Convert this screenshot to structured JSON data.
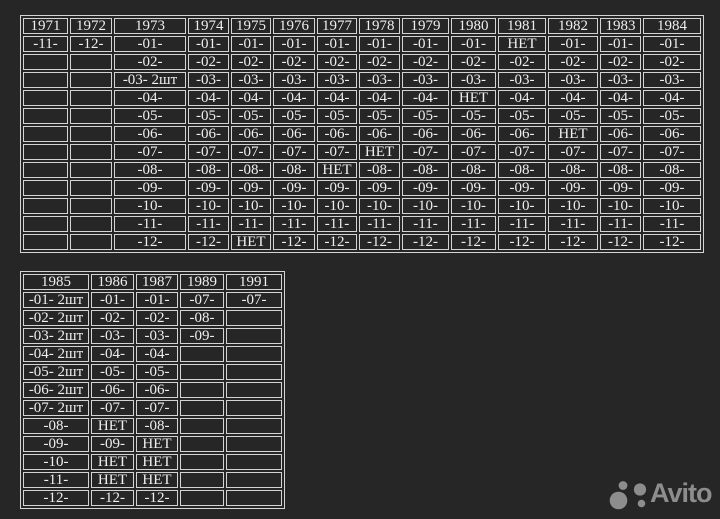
{
  "page": {
    "background_color": "#262626",
    "table_border_color": "#d4d4d4",
    "table_text_color": "#efefef"
  },
  "tables": {
    "table1": {
      "title": "availability-1971-1984",
      "headers": [
        "1971",
        "1972",
        "1973",
        "1974",
        "1975",
        "1976",
        "1977",
        "1978",
        "1979",
        "1980",
        "1981",
        "1982",
        "1983",
        "1984"
      ],
      "rows": [
        [
          "-11-",
          "-12-",
          "-01-",
          "-01-",
          "-01-",
          "-01-",
          "-01-",
          "-01-",
          "-01-",
          "-01-",
          "НЕТ",
          "-01-",
          "-01-",
          "-01-"
        ],
        [
          "",
          "",
          "-02-",
          "-02-",
          "-02-",
          "-02-",
          "-02-",
          "-02-",
          "-02-",
          "-02-",
          "-02-",
          "-02-",
          "-02-",
          "-02-"
        ],
        [
          "",
          "",
          "-03- 2шт",
          "-03-",
          "-03-",
          "-03-",
          "-03-",
          "-03-",
          "-03-",
          "-03-",
          "-03-",
          "-03-",
          "-03-",
          "-03-"
        ],
        [
          "",
          "",
          "-04-",
          "-04-",
          "-04-",
          "-04-",
          "-04-",
          "-04-",
          "-04-",
          "НЕТ",
          "-04-",
          "-04-",
          "-04-",
          "-04-"
        ],
        [
          "",
          "",
          "-05-",
          "-05-",
          "-05-",
          "-05-",
          "-05-",
          "-05-",
          "-05-",
          "-05-",
          "-05-",
          "-05-",
          "-05-",
          "-05-"
        ],
        [
          "",
          "",
          "-06-",
          "-06-",
          "-06-",
          "-06-",
          "-06-",
          "-06-",
          "-06-",
          "-06-",
          "-06-",
          "НЕТ",
          "-06-",
          "-06-"
        ],
        [
          "",
          "",
          "-07-",
          "-07-",
          "-07-",
          "-07-",
          "-07-",
          "НЕТ",
          "-07-",
          "-07-",
          "-07-",
          "-07-",
          "-07-",
          "-07-"
        ],
        [
          "",
          "",
          "-08-",
          "-08-",
          "-08-",
          "-08-",
          "НЕТ",
          "-08-",
          "-08-",
          "-08-",
          "-08-",
          "-08-",
          "-08-",
          "-08-"
        ],
        [
          "",
          "",
          "-09-",
          "-09-",
          "-09-",
          "-09-",
          "-09-",
          "-09-",
          "-09-",
          "-09-",
          "-09-",
          "-09-",
          "-09-",
          "-09-"
        ],
        [
          "",
          "",
          "-10-",
          "-10-",
          "-10-",
          "-10-",
          "-10-",
          "-10-",
          "-10-",
          "-10-",
          "-10-",
          "-10-",
          "-10-",
          "-10-"
        ],
        [
          "",
          "",
          "-11-",
          "-11-",
          "-11-",
          "-11-",
          "-11-",
          "-11-",
          "-11-",
          "-11-",
          "-11-",
          "-11-",
          "-11-",
          "-11-"
        ],
        [
          "",
          "",
          "-12-",
          "-12-",
          "НЕТ",
          "-12-",
          "-12-",
          "-12-",
          "-12-",
          "-12-",
          "-12-",
          "-12-",
          "-12-",
          "-12-"
        ]
      ]
    },
    "table2": {
      "title": "availability-1985-1991",
      "headers": [
        "1985",
        "1986",
        "1987",
        "1989",
        "1991"
      ],
      "rows": [
        [
          "-01- 2шт",
          "-01-",
          "-01-",
          "-07-",
          "-07-"
        ],
        [
          "-02- 2шт",
          "-02-",
          "-02-",
          "-08-",
          ""
        ],
        [
          "-03- 2шт",
          "-03-",
          "-03-",
          "-09-",
          ""
        ],
        [
          "-04- 2шт",
          "-04-",
          "-04-",
          "",
          ""
        ],
        [
          "-05- 2шт",
          "-05-",
          "-05-",
          "",
          ""
        ],
        [
          "-06- 2шт",
          "-06-",
          "-06-",
          "",
          ""
        ],
        [
          "-07- 2шт",
          "-07-",
          "-07-",
          "",
          ""
        ],
        [
          "-08-",
          "НЕТ",
          "-08-",
          "",
          ""
        ],
        [
          "-09-",
          "-09-",
          "НЕТ",
          "",
          ""
        ],
        [
          "-10-",
          "НЕТ",
          "НЕТ",
          "",
          ""
        ],
        [
          "-11-",
          "НЕТ",
          "НЕТ",
          "",
          ""
        ],
        [
          "-12-",
          "-12-",
          "-12-",
          "",
          ""
        ]
      ]
    }
  },
  "watermark": {
    "label": "Avito",
    "color": "#8d8d8d"
  }
}
